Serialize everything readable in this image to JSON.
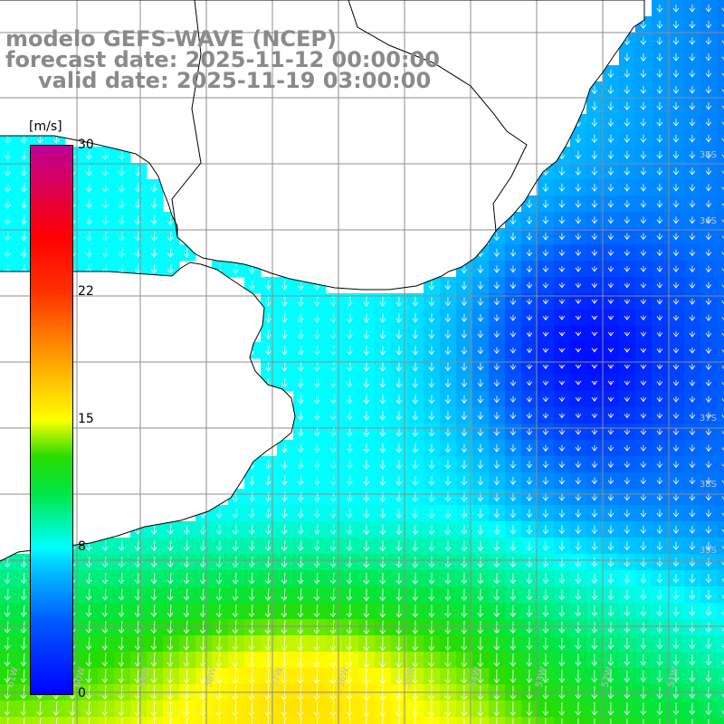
{
  "title": {
    "model": "modelo GEFS-WAVE (NCEP)",
    "forecast": "forecast date: 2025-11-12 00:00:00",
    "valid": "valid date: 2025-11-19 03:00:00"
  },
  "colorbar": {
    "unit": "[m/s]",
    "ticks": [
      {
        "label": "30",
        "value": 30
      },
      {
        "label": "22",
        "value": 22
      },
      {
        "label": "15",
        "value": 15
      },
      {
        "label": "8",
        "value": 8
      },
      {
        "label": "0",
        "value": 0
      }
    ],
    "range": [
      0,
      30
    ]
  },
  "map": {
    "lat_labels": [
      "35S",
      "36S",
      "37S",
      "38S",
      "39S"
    ],
    "lon_labels": [
      "61W",
      "60W",
      "59W",
      "58W",
      "57W",
      "56W",
      "55W",
      "54W",
      "53W",
      "52W",
      "51W"
    ],
    "field": "wind speed (m/s)",
    "land_color": "#ffffff",
    "grid_color": "#8c8c8c"
  }
}
